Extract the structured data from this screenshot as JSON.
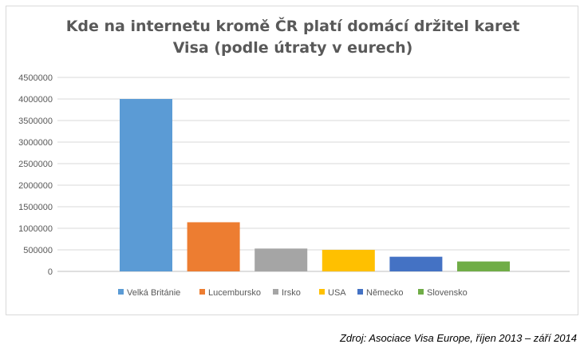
{
  "chart_data": {
    "type": "bar",
    "title_lines": [
      "Kde na internetu kromě ČR platí domácí držitel karet",
      "Visa (podle útraty v eurech)"
    ],
    "categories": [
      "Velká Británie",
      "Lucembursko",
      "Irsko",
      "USA",
      "Německo",
      "Slovensko"
    ],
    "series": [
      {
        "name": "Velká Británie",
        "color": "#5b9bd5",
        "value": 4000000
      },
      {
        "name": "Lucembursko",
        "color": "#ed7d31",
        "value": 1140000
      },
      {
        "name": "Irsko",
        "color": "#a5a5a5",
        "value": 530000
      },
      {
        "name": "USA",
        "color": "#ffc000",
        "value": 500000
      },
      {
        "name": "Německo",
        "color": "#4472c4",
        "value": 340000
      },
      {
        "name": "Slovensko",
        "color": "#70ad47",
        "value": 230000
      }
    ],
    "ylim": [
      0,
      4500000
    ],
    "yticks": [
      "0",
      "500000",
      "1000000",
      "1500000",
      "2000000",
      "2500000",
      "3000000",
      "3500000",
      "4000000",
      "4500000"
    ],
    "grid": true,
    "legend": "bottom"
  },
  "source_text": "Zdroj: Asociace Visa Europe, říjen 2013 – září 2014"
}
